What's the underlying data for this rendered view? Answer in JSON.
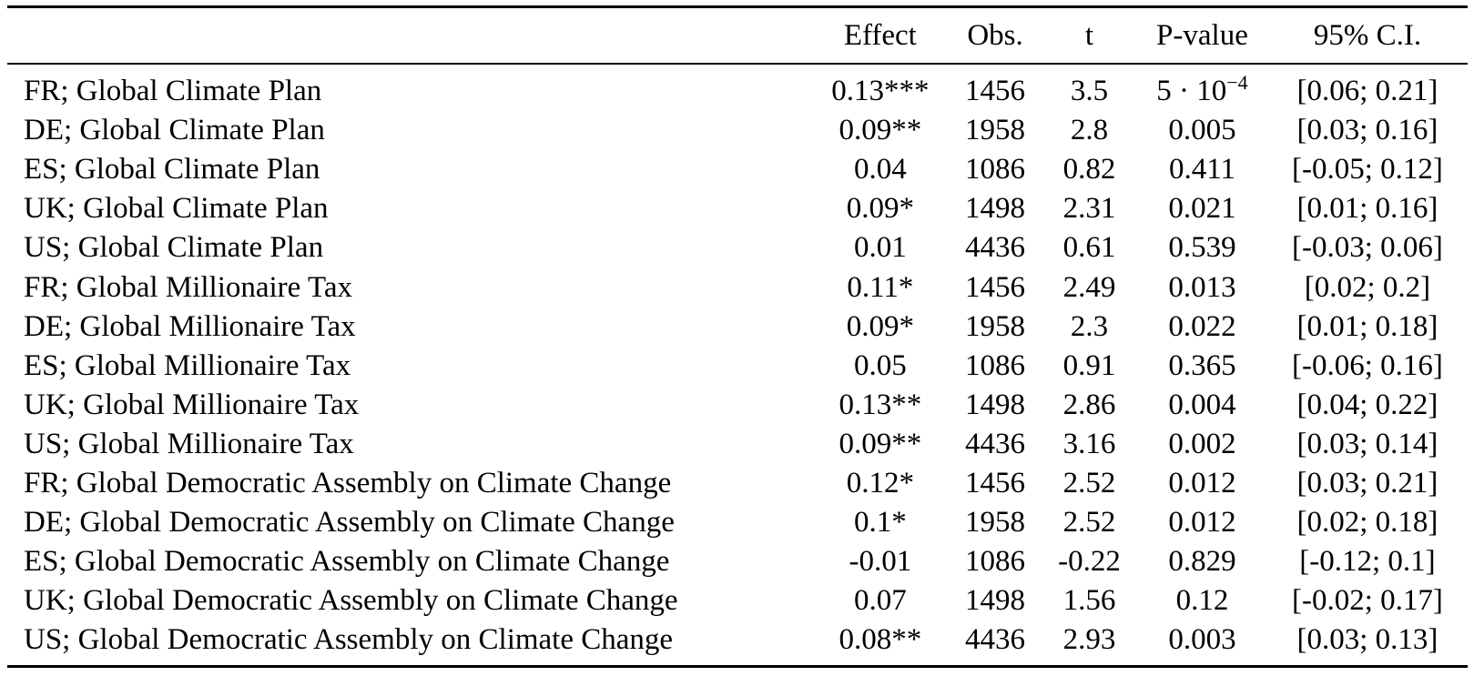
{
  "table": {
    "columns": [
      "",
      "Effect",
      "Obs.",
      "t",
      "P-value",
      "95% C.I."
    ],
    "rows": [
      {
        "label": "FR; Global Climate Plan",
        "effect": "0.13***",
        "obs": "1456",
        "t": "3.5",
        "p": "5 · 10",
        "p_exp": "−4",
        "ci": "[0.06; 0.21]"
      },
      {
        "label": "DE; Global Climate Plan",
        "effect": "0.09**",
        "obs": "1958",
        "t": "2.8",
        "p": "0.005",
        "ci": "[0.03; 0.16]"
      },
      {
        "label": "ES; Global Climate Plan",
        "effect": "0.04",
        "obs": "1086",
        "t": "0.82",
        "p": "0.411",
        "ci": "[-0.05; 0.12]"
      },
      {
        "label": "UK; Global Climate Plan",
        "effect": "0.09*",
        "obs": "1498",
        "t": "2.31",
        "p": "0.021",
        "ci": "[0.01; 0.16]"
      },
      {
        "label": "US; Global Climate Plan",
        "effect": "0.01",
        "obs": "4436",
        "t": "0.61",
        "p": "0.539",
        "ci": "[-0.03; 0.06]"
      },
      {
        "label": "FR; Global Millionaire Tax",
        "effect": "0.11*",
        "obs": "1456",
        "t": "2.49",
        "p": "0.013",
        "ci": "[0.02; 0.2]"
      },
      {
        "label": "DE; Global Millionaire Tax",
        "effect": "0.09*",
        "obs": "1958",
        "t": "2.3",
        "p": "0.022",
        "ci": "[0.01; 0.18]"
      },
      {
        "label": "ES; Global Millionaire Tax",
        "effect": "0.05",
        "obs": "1086",
        "t": "0.91",
        "p": "0.365",
        "ci": "[-0.06; 0.16]"
      },
      {
        "label": "UK; Global Millionaire Tax",
        "effect": "0.13**",
        "obs": "1498",
        "t": "2.86",
        "p": "0.004",
        "ci": "[0.04; 0.22]"
      },
      {
        "label": "US; Global Millionaire Tax",
        "effect": "0.09**",
        "obs": "4436",
        "t": "3.16",
        "p": "0.002",
        "ci": "[0.03; 0.14]"
      },
      {
        "label": "FR; Global Democratic Assembly on Climate Change",
        "effect": "0.12*",
        "obs": "1456",
        "t": "2.52",
        "p": "0.012",
        "ci": "[0.03; 0.21]"
      },
      {
        "label": "DE; Global Democratic Assembly on Climate Change",
        "effect": "0.1*",
        "obs": "1958",
        "t": "2.52",
        "p": "0.012",
        "ci": "[0.02; 0.18]"
      },
      {
        "label": "ES; Global Democratic Assembly on Climate Change",
        "effect": "-0.01",
        "obs": "1086",
        "t": "-0.22",
        "p": "0.829",
        "ci": "[-0.12; 0.1]"
      },
      {
        "label": "UK; Global Democratic Assembly on Climate Change",
        "effect": "0.07",
        "obs": "1498",
        "t": "1.56",
        "p": "0.12",
        "ci": "[-0.02; 0.17]"
      },
      {
        "label": "US; Global Democratic Assembly on Climate Change",
        "effect": "0.08**",
        "obs": "4436",
        "t": "2.93",
        "p": "0.003",
        "ci": "[0.03; 0.13]"
      }
    ]
  }
}
